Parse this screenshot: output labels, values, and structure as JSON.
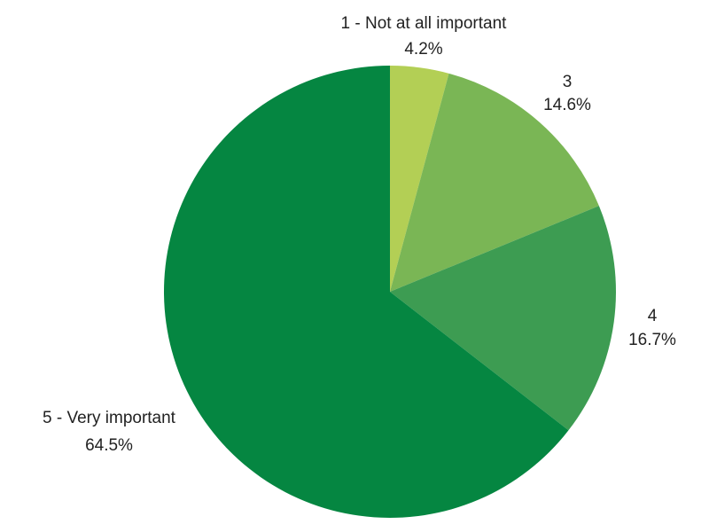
{
  "chart_data": {
    "type": "pie",
    "title": "",
    "start_angle_deg": 0,
    "direction": "clockwise",
    "legend": "none",
    "slices": [
      {
        "label": "1 - Not at all important",
        "value": 4.2,
        "value_label": "4.2%",
        "color": "#b3cf55"
      },
      {
        "label": "3",
        "value": 14.6,
        "value_label": "14.6%",
        "color": "#7ab655"
      },
      {
        "label": "4",
        "value": 16.7,
        "value_label": "16.7%",
        "color": "#3d9c52"
      },
      {
        "label": "5 - Very important",
        "value": 64.5,
        "value_label": "64.5%",
        "color": "#058641"
      }
    ]
  }
}
